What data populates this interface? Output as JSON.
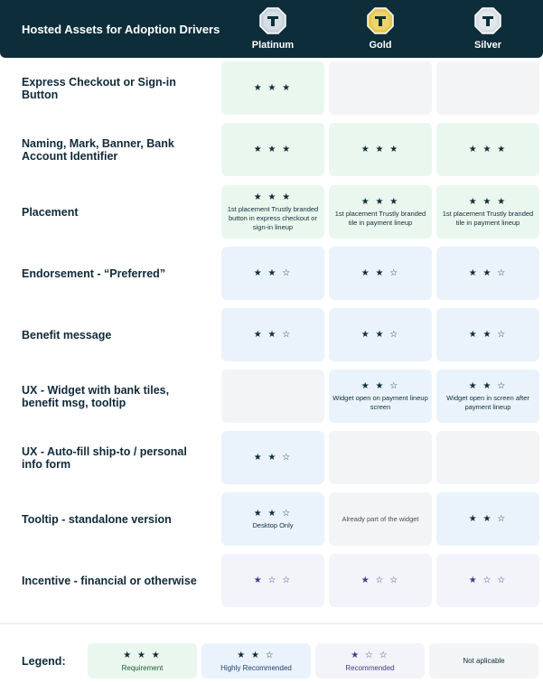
{
  "header": {
    "title": "Hosted Assets for Adoption Drivers",
    "tiers": [
      {
        "name": "Platinum",
        "color": "#c9d3dc"
      },
      {
        "name": "Gold",
        "color": "#e8c84a"
      },
      {
        "name": "Silver",
        "color": "#d7dde3"
      }
    ]
  },
  "stars": {
    "req": "★ ★ ★",
    "high": "★ ★ ☆",
    "rec": "★ ☆ ☆"
  },
  "rows": [
    {
      "label": "Express Checkout or Sign-in Button",
      "cells": [
        {
          "level": "req",
          "note": ""
        },
        {
          "level": "na",
          "note": ""
        },
        {
          "level": "na",
          "note": ""
        }
      ]
    },
    {
      "label": "Naming, Mark, Banner, Bank Account Identifier",
      "cells": [
        {
          "level": "req",
          "note": ""
        },
        {
          "level": "req",
          "note": ""
        },
        {
          "level": "req",
          "note": ""
        }
      ]
    },
    {
      "label": "Placement",
      "cells": [
        {
          "level": "req",
          "note": "1st placement Trustly branded button in express checkout or sign-in lineup"
        },
        {
          "level": "req",
          "note": "1st placement Trustly branded tile in payment lineup"
        },
        {
          "level": "req",
          "note": "1st placement Trustly branded tile in payment lineup"
        }
      ]
    },
    {
      "label": "Endorsement - “Preferred”",
      "cells": [
        {
          "level": "high",
          "note": ""
        },
        {
          "level": "high",
          "note": ""
        },
        {
          "level": "high",
          "note": ""
        }
      ]
    },
    {
      "label": "Benefit message",
      "cells": [
        {
          "level": "high",
          "note": ""
        },
        {
          "level": "high",
          "note": ""
        },
        {
          "level": "high",
          "note": ""
        }
      ]
    },
    {
      "label": "UX - Widget with bank tiles, benefit msg, tooltip",
      "cells": [
        {
          "level": "na",
          "note": ""
        },
        {
          "level": "high",
          "note": "Widget open on payment lineup screen"
        },
        {
          "level": "high",
          "note": "Widget open in screen after payment lineup"
        }
      ]
    },
    {
      "label": "UX - Auto-fill ship-to / personal info form",
      "cells": [
        {
          "level": "high",
          "note": ""
        },
        {
          "level": "na",
          "note": ""
        },
        {
          "level": "na",
          "note": ""
        }
      ]
    },
    {
      "label": "Tooltip - standalone version",
      "cells": [
        {
          "level": "high",
          "note": "Desktop Only"
        },
        {
          "level": "na",
          "note": "Already part of the widget"
        },
        {
          "level": "high",
          "note": ""
        }
      ]
    },
    {
      "label": "Incentive - financial or otherwise",
      "cells": [
        {
          "level": "rec",
          "note": ""
        },
        {
          "level": "rec",
          "note": ""
        },
        {
          "level": "rec",
          "note": ""
        }
      ]
    }
  ],
  "legend": {
    "label": "Legend:",
    "items": [
      {
        "level": "req",
        "text": "Requirement"
      },
      {
        "level": "high",
        "text": "Highly Recommended"
      },
      {
        "level": "rec",
        "text": "Recommended"
      },
      {
        "level": "na",
        "text": "Not aplicable"
      }
    ]
  }
}
